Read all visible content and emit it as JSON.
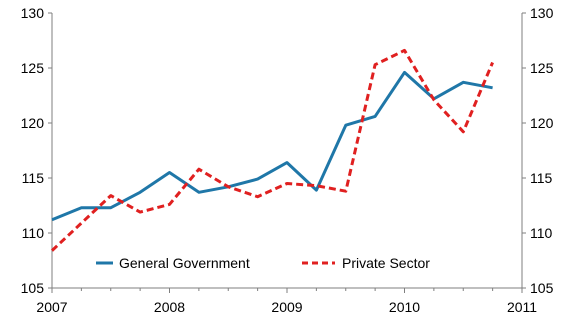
{
  "chart_data": {
    "type": "line",
    "title": "",
    "xlabel": "",
    "ylabel": "",
    "xlim": [
      2007,
      2011
    ],
    "ylim": [
      105,
      130
    ],
    "x_ticks": [
      "2007",
      "2008",
      "2009",
      "2010",
      "2011"
    ],
    "y_ticks": [
      "105",
      "110",
      "115",
      "120",
      "125",
      "130"
    ],
    "right_axis": true,
    "grid": false,
    "legend_position": "bottom-center",
    "series": [
      {
        "name": "General Government",
        "color": "#1f77a8",
        "style": "solid",
        "x": [
          2007.0,
          2007.25,
          2007.5,
          2007.75,
          2008.0,
          2008.25,
          2008.5,
          2008.75,
          2009.0,
          2009.25,
          2009.5,
          2009.75,
          2010.0,
          2010.25,
          2010.5,
          2010.75
        ],
        "values": [
          111.2,
          112.3,
          112.3,
          113.7,
          115.5,
          113.7,
          114.2,
          114.9,
          116.4,
          113.9,
          119.8,
          120.6,
          124.6,
          122.2,
          123.7,
          123.2
        ]
      },
      {
        "name": "Private Sector",
        "color": "#e02020",
        "style": "dashed",
        "x": [
          2007.0,
          2007.25,
          2007.5,
          2007.75,
          2008.0,
          2008.25,
          2008.5,
          2008.75,
          2009.0,
          2009.25,
          2009.5,
          2009.75,
          2010.0,
          2010.25,
          2010.5,
          2010.75
        ],
        "values": [
          108.4,
          110.9,
          113.4,
          111.9,
          112.6,
          115.8,
          114.2,
          113.3,
          114.5,
          114.3,
          113.8,
          125.3,
          126.6,
          122.1,
          119.2,
          125.5
        ]
      }
    ]
  }
}
